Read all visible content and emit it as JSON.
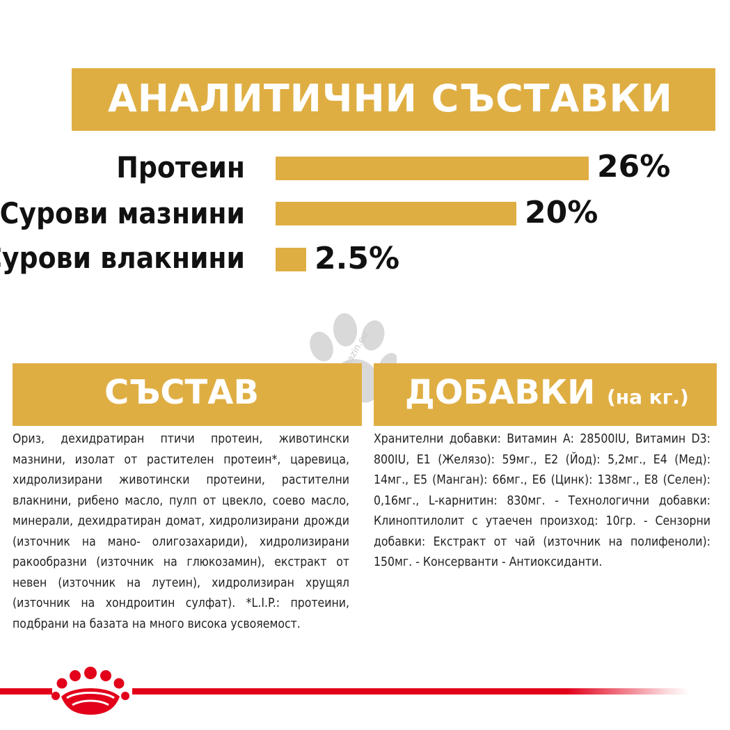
{
  "analytical": {
    "title": "АНАЛИТИЧНИ СЪСТАВКИ",
    "items": [
      {
        "label": "Протеин",
        "value_text": "26%",
        "value": 26
      },
      {
        "label": "Сурови мазнини",
        "value_text": "20%",
        "value": 20
      },
      {
        "label": "Сурови влакнини",
        "value_text": "2.5%",
        "value": 2.5
      }
    ]
  },
  "composition": {
    "title": "СЪСТАВ",
    "text": "Ориз, дехидратиран птичи протеин, животински мазнини, изолат от растителен протеин*, царевица, хидролизирани животински протеини, растителни влакнини, рибено масло, пулп от цвекло, соево масло, минерали, дехидратиран домат, хидролизирани дрожди (източник на мано- олигозахариди), хидролизирани ракообразни (източник на глюкозамин), екстракт от невен (източник на лутеин), хидролизиран хрущял (източник на хондроитин сулфат). *L.I.P.: протеини, подбрани на базата на много висока усвояемост."
  },
  "additives": {
    "title": "ДОБАВКИ",
    "subtitle": "(на кг.)",
    "text": "Хранителни добавки: Витамин А: 28500IU, Витамин D3: 800IU, Е1 (Желязо): 59мг., Е2 (Йод): 5,2мг., Е4 (Мед): 14мг., Е5 (Манган): 66мг., Е6 (Цинк): 138мг., Е8 (Селен): 0,16мг., L-карнитин: 830мг. - Технологични добавки: Клиноптилолит с утаечен произход: 10гр. - Сензорни добавки: Екстракт от чай (източник на полифеноли): 150мг. - Консерванти - Антиоксиданти."
  },
  "watermark": {
    "text": "zoomagazin.eu",
    "icon": "paw-icon"
  },
  "colors": {
    "accent": "#dfae43",
    "brand_red": "#e2001a"
  }
}
